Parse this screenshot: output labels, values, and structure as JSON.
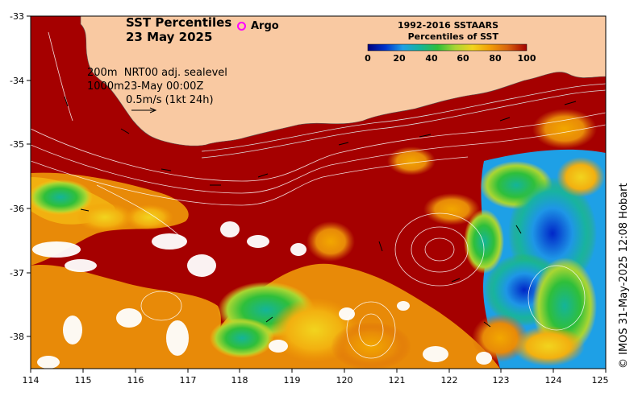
{
  "map": {
    "title_line1": "SST Percentiles",
    "title_line2": "23 May 2025",
    "argo_label": "Argo",
    "legend": {
      "title_line1": "1992-2016 SSTAARS",
      "title_line2": "Percentiles of SST",
      "ticks": [
        "0",
        "20",
        "40",
        "60",
        "80",
        "100"
      ],
      "colors": [
        "#00007f",
        "#0033cc",
        "#1ea0e6",
        "#14b49a",
        "#2fbf3a",
        "#a9d632",
        "#f2d41e",
        "#f29d06",
        "#d9630c",
        "#a50000"
      ]
    },
    "info": {
      "depth_200": "200m",
      "product": "NRT00 adj. sealevel",
      "depth_1000": "1000m",
      "time": "23-May 00:00Z",
      "scale": "0.5m/s (1kt 24h)"
    },
    "credit": "© IMOS 31-May-2025 12:08 Hobart",
    "lon_ticks": [
      "114",
      "115",
      "116",
      "117",
      "118",
      "119",
      "120",
      "121",
      "122",
      "123",
      "124",
      "125"
    ],
    "lat_ticks": [
      "-33",
      "-34",
      "-35",
      "-36",
      "-37",
      "-38"
    ],
    "colors": {
      "land": "#f9c9a2",
      "high_percentile": "#a50000",
      "frame": "#000000"
    }
  }
}
